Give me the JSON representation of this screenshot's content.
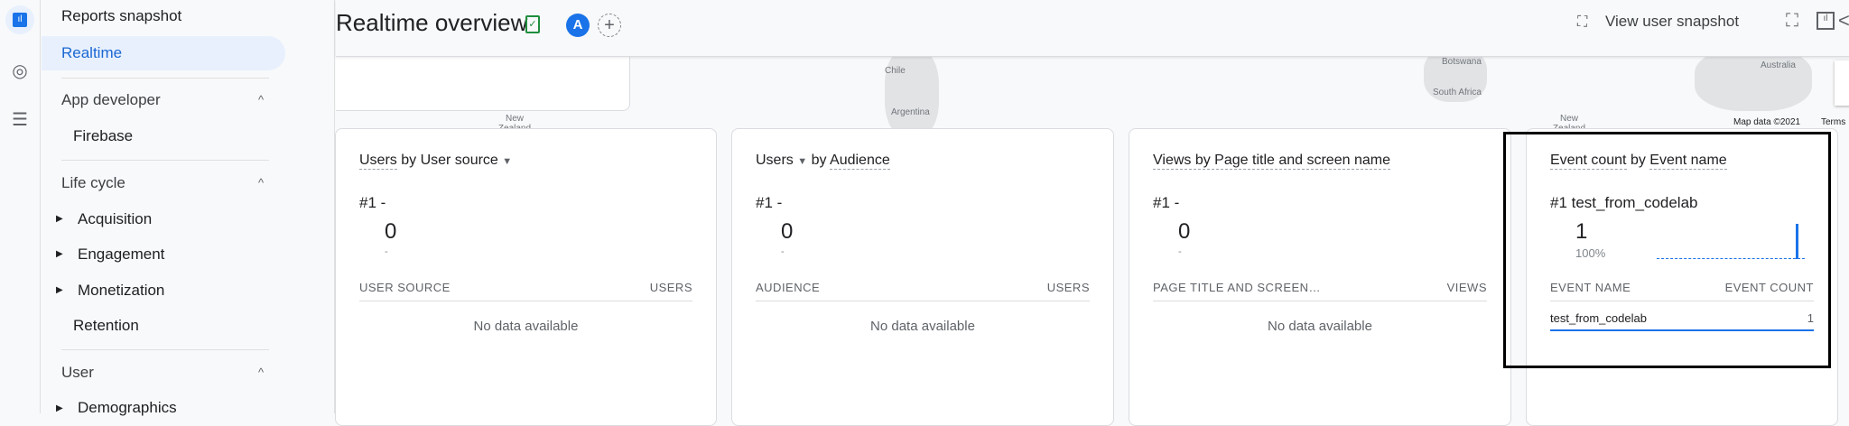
{
  "rail": {
    "icons": [
      "reports-icon",
      "explore-icon",
      "configure-icon"
    ]
  },
  "nav": {
    "reports_snapshot": "Reports snapshot",
    "realtime": "Realtime",
    "app_developer": "App developer",
    "firebase": "Firebase",
    "life_cycle": "Life cycle",
    "acquisition": "Acquisition",
    "engagement": "Engagement",
    "monetization": "Monetization",
    "retention": "Retention",
    "user": "User",
    "demographics": "Demographics"
  },
  "header": {
    "title": "Realtime overview",
    "avatar": "A",
    "view_user_snapshot": "View user snapshot"
  },
  "map": {
    "labels": [
      "Chile",
      "Argentina",
      "Botswana",
      "South Africa",
      "Australia",
      "New Zealand",
      "New Zealand"
    ],
    "attribution": "Map data ©2021",
    "terms": "Terms"
  },
  "cards": [
    {
      "title_a": "Users",
      "title_b": " by User source",
      "rank": "#1  -",
      "value": "0",
      "sub": "-",
      "col1": "USER SOURCE",
      "col2": "USERS",
      "empty": "No data available"
    },
    {
      "title_a": "Users",
      "title_b": "Audience",
      "rank": "#1  -",
      "value": "0",
      "sub": "-",
      "col1": "AUDIENCE",
      "col2": "USERS",
      "empty": "No data available"
    },
    {
      "title_a": "Views by Page title and screen name",
      "rank": "#1  -",
      "value": "0",
      "sub": "-",
      "col1": "PAGE TITLE AND SCREEN…",
      "col2": "VIEWS",
      "empty": "No data available"
    },
    {
      "title_a": "Event count",
      "title_b": "Event name",
      "by": " by ",
      "rank": "#1  test_from_codelab",
      "value": "1",
      "sub": "100%",
      "col1": "EVENT NAME",
      "col2": "EVENT COUNT",
      "row_name": "test_from_codelab",
      "row_value": "1"
    }
  ],
  "colors": {
    "accent": "#1a73e8",
    "active_bg": "#e8f0fe",
    "highlight_border": "#000000"
  }
}
